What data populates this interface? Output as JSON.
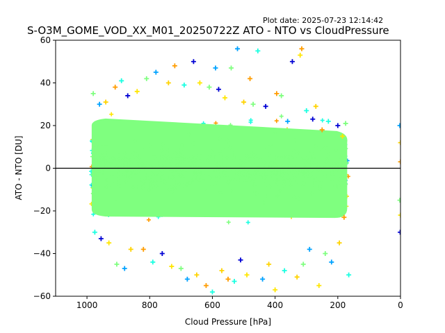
{
  "plot_date": "Plot date: 2025-07-23 12:14:42",
  "chart_data": {
    "type": "scatter",
    "title": "S-O3M_GOME_VOD_XX_M01_20250722Z ATO - NTO vs CloudPressure",
    "xlabel": "Cloud Pressure [hPa]",
    "ylabel": "ATO - NTO [DU]",
    "xlim": [
      1100,
      0
    ],
    "ylim": [
      -60,
      60
    ],
    "x_inverted": true,
    "xticks": [
      1000,
      800,
      600,
      400,
      200,
      0
    ],
    "yticks": [
      -60,
      -40,
      -20,
      0,
      20,
      40,
      60
    ],
    "reference_line_y": 0,
    "marker": "+",
    "point_colors": [
      "#7fff7f",
      "#1affe1",
      "#00a2ff",
      "#0000d4",
      "#ffd300",
      "#ffe600",
      "#ff9c00"
    ],
    "dense_cluster": {
      "pressure_range": [
        985,
        170
      ],
      "core_range": [
        -22,
        22
      ],
      "color": "#7fff7f"
    },
    "samples": [
      [
        980,
        35
      ],
      [
        975,
        -30
      ],
      [
        960,
        30
      ],
      [
        955,
        -33
      ],
      [
        940,
        31
      ],
      [
        930,
        -35
      ],
      [
        910,
        38
      ],
      [
        905,
        -45
      ],
      [
        890,
        41
      ],
      [
        880,
        -47
      ],
      [
        870,
        34
      ],
      [
        860,
        -38
      ],
      [
        840,
        36
      ],
      [
        820,
        -38
      ],
      [
        810,
        42
      ],
      [
        790,
        -44
      ],
      [
        780,
        45
      ],
      [
        760,
        -40
      ],
      [
        740,
        40
      ],
      [
        730,
        -46
      ],
      [
        720,
        48
      ],
      [
        700,
        -47
      ],
      [
        690,
        39
      ],
      [
        680,
        -52
      ],
      [
        660,
        50
      ],
      [
        650,
        -50
      ],
      [
        640,
        40
      ],
      [
        620,
        -55
      ],
      [
        610,
        38
      ],
      [
        600,
        -58
      ],
      [
        590,
        47
      ],
      [
        580,
        37
      ],
      [
        570,
        -48
      ],
      [
        560,
        33
      ],
      [
        550,
        -52
      ],
      [
        540,
        47
      ],
      [
        530,
        -53
      ],
      [
        520,
        56
      ],
      [
        510,
        -43
      ],
      [
        500,
        31
      ],
      [
        490,
        -50
      ],
      [
        480,
        42
      ],
      [
        470,
        30
      ],
      [
        455,
        55
      ],
      [
        440,
        -52
      ],
      [
        430,
        29
      ],
      [
        420,
        -45
      ],
      [
        400,
        -57
      ],
      [
        395,
        35
      ],
      [
        380,
        34
      ],
      [
        370,
        -48
      ],
      [
        360,
        22
      ],
      [
        345,
        50
      ],
      [
        330,
        -51
      ],
      [
        320,
        53
      ],
      [
        315,
        56
      ],
      [
        310,
        -45
      ],
      [
        300,
        27
      ],
      [
        290,
        -38
      ],
      [
        280,
        23
      ],
      [
        270,
        29
      ],
      [
        260,
        -55
      ],
      [
        250,
        18
      ],
      [
        240,
        -40
      ],
      [
        230,
        22
      ],
      [
        220,
        -44
      ],
      [
        200,
        20
      ],
      [
        195,
        -35
      ],
      [
        185,
        15
      ],
      [
        180,
        -23
      ],
      [
        175,
        21
      ],
      [
        165,
        -50
      ],
      [
        2,
        20
      ],
      [
        1,
        -30
      ],
      [
        0,
        12
      ],
      [
        0,
        -22
      ],
      [
        0,
        3
      ],
      [
        2,
        -15
      ]
    ]
  }
}
